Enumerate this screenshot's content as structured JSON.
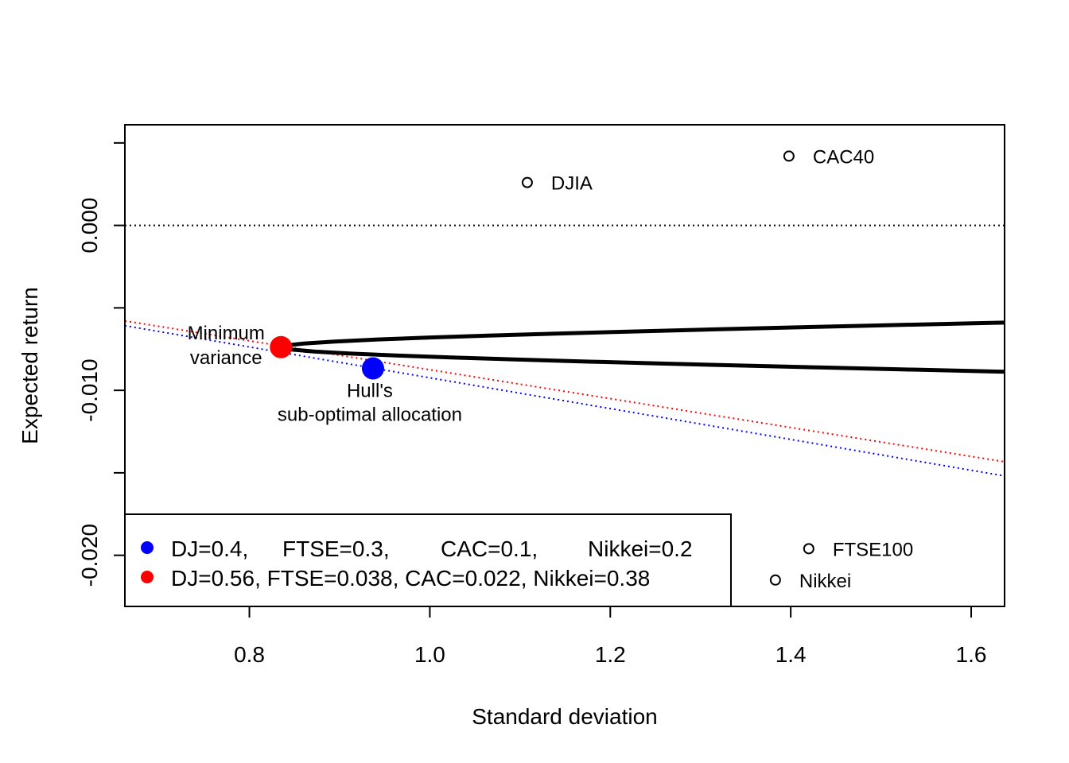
{
  "chart_data": {
    "type": "scatter",
    "title": "",
    "xlabel": "Standard deviation",
    "ylabel": "Expected return",
    "xlim": [
      0.662,
      1.637
    ],
    "ylim": [
      -0.0231,
      0.0061
    ],
    "x_ticks": [
      {
        "value": 0.8,
        "label": "0.8"
      },
      {
        "value": 1.0,
        "label": "1.0"
      },
      {
        "value": 1.2,
        "label": "1.2"
      },
      {
        "value": 1.4,
        "label": "1.4"
      },
      {
        "value": 1.6,
        "label": "1.6"
      }
    ],
    "y_ticks": [
      {
        "value": 0.0,
        "label": "0.000"
      },
      {
        "value": -0.01,
        "label": "-0.010"
      },
      {
        "value": -0.02,
        "label": "-0.020"
      }
    ],
    "y_minor_ticks": [
      0.005,
      -0.005,
      -0.015
    ],
    "grid": false,
    "assets": [
      {
        "label": "DJIA",
        "x": 1.108,
        "y": 0.0026
      },
      {
        "label": "CAC40",
        "x": 1.398,
        "y": 0.0042
      },
      {
        "label": "FTSE100",
        "x": 1.42,
        "y": -0.0196
      },
      {
        "label": "Nikkei",
        "x": 1.383,
        "y": -0.0215
      }
    ],
    "frontier": {
      "min_sd": 0.835,
      "min_return": -0.00738,
      "curvature": 1.12e-06
    },
    "highlighted_points": [
      {
        "label_lines": [
          "Minimum",
          "variance"
        ],
        "x": 0.835,
        "y": -0.00738,
        "color": "#ff0000"
      },
      {
        "label_lines": [
          "Hull's",
          "sub-optimal allocation"
        ],
        "x": 0.937,
        "y": -0.00867,
        "color": "#0000ff"
      }
    ],
    "reference_lines": [
      {
        "name": "zero-return",
        "type": "horizontal",
        "y": 0.0,
        "color": "#000000"
      },
      {
        "name": "blue",
        "type": "line",
        "from": [
          0.662,
          -0.00608
        ],
        "to": [
          1.637,
          -0.01519
        ],
        "color": "#0000ff"
      },
      {
        "name": "red",
        "type": "line",
        "from": [
          0.662,
          -0.00579
        ],
        "to": [
          1.637,
          -0.01433
        ],
        "color": "#ff0000"
      }
    ],
    "legend": {
      "placement": "bottom-left",
      "entries": [
        {
          "color": "#0000ff",
          "parts": [
            "DJ=0.4,",
            "FTSE=0.3,",
            "CAC=0.1,",
            "Nikkei=0.2"
          ]
        },
        {
          "color": "#ff0000",
          "parts": [
            "DJ=0.56,",
            "FTSE=0.038,",
            "CAC=0.022,",
            "Nikkei=0.38"
          ]
        }
      ]
    }
  }
}
